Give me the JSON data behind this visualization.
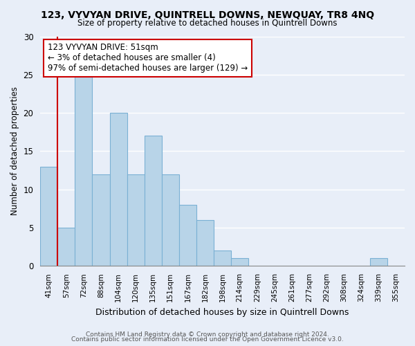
{
  "title": "123, VYVYAN DRIVE, QUINTRELL DOWNS, NEWQUAY, TR8 4NQ",
  "subtitle": "Size of property relative to detached houses in Quintrell Downs",
  "xlabel": "Distribution of detached houses by size in Quintrell Downs",
  "ylabel": "Number of detached properties",
  "bin_labels": [
    "41sqm",
    "57sqm",
    "72sqm",
    "88sqm",
    "104sqm",
    "120sqm",
    "135sqm",
    "151sqm",
    "167sqm",
    "182sqm",
    "198sqm",
    "214sqm",
    "229sqm",
    "245sqm",
    "261sqm",
    "277sqm",
    "292sqm",
    "308sqm",
    "324sqm",
    "339sqm",
    "355sqm"
  ],
  "bar_heights": [
    13,
    5,
    25,
    12,
    20,
    12,
    17,
    12,
    8,
    6,
    2,
    1,
    0,
    0,
    0,
    0,
    0,
    0,
    0,
    1,
    0
  ],
  "bar_color": "#b8d4e8",
  "bar_edge_color": "#7ab0d4",
  "marker_bin_index": 0,
  "marker_color": "#cc0000",
  "ylim": [
    0,
    30
  ],
  "yticks": [
    0,
    5,
    10,
    15,
    20,
    25,
    30
  ],
  "annotation_text": "123 VYVYAN DRIVE: 51sqm\n← 3% of detached houses are smaller (4)\n97% of semi-detached houses are larger (129) →",
  "annotation_box_color": "#ffffff",
  "annotation_box_edgecolor": "#cc0000",
  "footer1": "Contains HM Land Registry data © Crown copyright and database right 2024.",
  "footer2": "Contains public sector information licensed under the Open Government Licence v3.0.",
  "background_color": "#e8eef8",
  "grid_color": "#ffffff"
}
